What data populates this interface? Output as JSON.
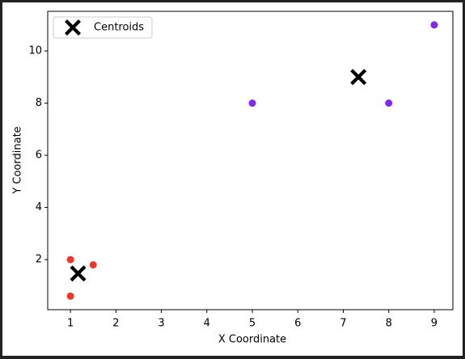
{
  "chart_data": {
    "type": "scatter",
    "xlabel": "X Coordinate",
    "ylabel": "Y Coordinate",
    "points": {
      "x": [
        1,
        1.5,
        1,
        5,
        8,
        9
      ],
      "y": [
        2,
        1.8,
        0.6,
        8,
        8,
        11
      ],
      "colors": [
        "#e8392b",
        "#e8392b",
        "#e8392b",
        "#7f2be8",
        "#7f2be8",
        "#7f2be8"
      ]
    },
    "centroids": {
      "name": "Centroids",
      "color": "#000000",
      "x": [
        1.1667,
        7.3333
      ],
      "y": [
        1.4667,
        9
      ]
    },
    "xlim": [
      0.5,
      9.41
    ],
    "ylim": [
      0.08,
      11.52
    ],
    "xticks": [
      1,
      2,
      3,
      4,
      5,
      6,
      7,
      8,
      9
    ],
    "yticks": [
      2,
      4,
      6,
      8,
      10
    ],
    "legend": "upper left"
  }
}
